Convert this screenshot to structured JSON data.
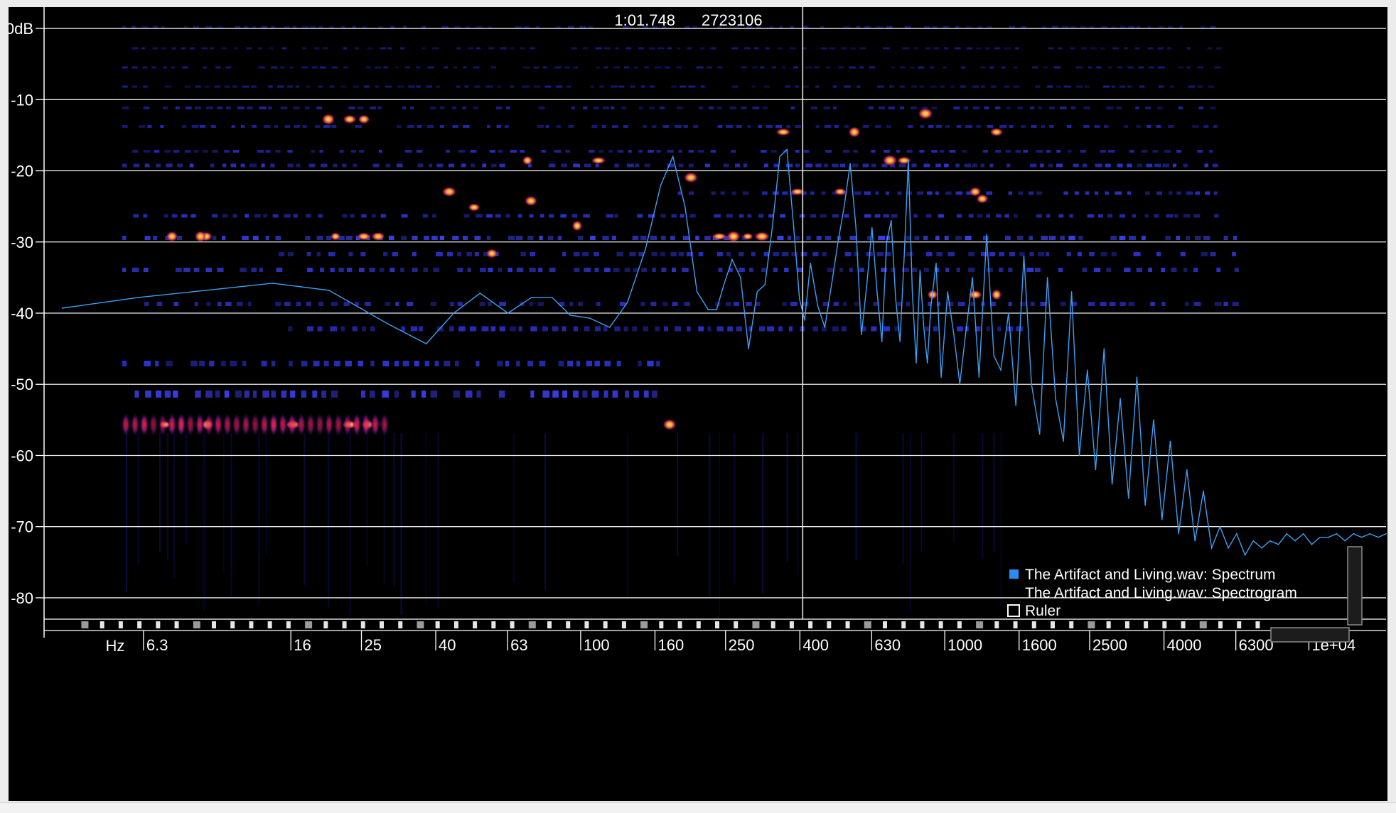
{
  "cursor": {
    "time": "1:01.748",
    "sample": "2723106"
  },
  "legend": {
    "spectrum": {
      "label": "The Artifact and Living.wav: Spectrum",
      "color": "#2b8cf0"
    },
    "spectrogram": {
      "label": "The Artifact and Living.wav: Spectrogram"
    },
    "ruler": {
      "label": "Ruler"
    }
  },
  "colors": {
    "spectrum_line": "#3aa0f5",
    "grid": "#e8e8e8",
    "background": "#000000"
  },
  "chart_data": {
    "type": "line",
    "xscale": "log",
    "x_unit_label": "Hz",
    "x_tick_labels": [
      "6.3",
      "16",
      "25",
      "40",
      "63",
      "100",
      "160",
      "250",
      "400",
      "630",
      "1000",
      "1600",
      "2500",
      "4000",
      "6300",
      "1e+04"
    ],
    "x_ticks": [
      6.3,
      16,
      25,
      40,
      63,
      100,
      160,
      250,
      400,
      630,
      1000,
      1600,
      2500,
      4000,
      6300,
      10000
    ],
    "xlim": [
      3.3,
      16000
    ],
    "y_tick_labels": [
      "0dB",
      "-10",
      "-20",
      "-30",
      "-40",
      "-50",
      "-60",
      "-70",
      "-80"
    ],
    "y_ticks": [
      0,
      -10,
      -20,
      -30,
      -40,
      -50,
      -60,
      -70,
      -80
    ],
    "ylim": [
      -83,
      3
    ],
    "grid": true,
    "cursor_x": 400,
    "legend_position": "bottom-right",
    "series": [
      {
        "name": "The Artifact and Living.wav: Spectrum",
        "x": [
          3.7,
          6,
          10,
          14,
          20,
          29,
          37,
          44,
          52,
          62,
          72,
          82,
          92,
          104,
          118,
          132,
          148,
          163,
          176,
          190,
          205,
          220,
          232,
          243,
          256,
          270,
          284,
          300,
          315,
          330,
          346,
          362,
          378,
          392,
          405,
          420,
          440,
          460,
          480,
          500,
          520,
          540,
          560,
          580,
          600,
          620,
          640,
          660,
          680,
          700,
          720,
          740,
          760,
          780,
          800,
          820,
          840,
          860,
          880,
          900,
          930,
          960,
          1000,
          1040,
          1080,
          1120,
          1170,
          1220,
          1280,
          1340,
          1400,
          1470,
          1540,
          1620,
          1700,
          1790,
          1880,
          1980,
          2080,
          2190,
          2300,
          2420,
          2550,
          2690,
          2830,
          2980,
          3140,
          3310,
          3490,
          3680,
          3880,
          4090,
          4310,
          4540,
          4780,
          5040,
          5310,
          5600,
          5900,
          6220,
          6560,
          6910,
          7290,
          7680,
          8100,
          8540,
          9000,
          9490,
          10000,
          10540,
          11110,
          11710,
          12340,
          13010,
          13710,
          14450,
          15230,
          16000
        ],
        "values": [
          -39.3,
          -37.8,
          -36.6,
          -35.8,
          -36.8,
          -41.5,
          -44.3,
          -40,
          -37.2,
          -40,
          -37.8,
          -37.8,
          -40.3,
          -40.7,
          -42,
          -38.5,
          -31,
          -22,
          -18,
          -25,
          -37,
          -39.5,
          -39.5,
          -36,
          -32.5,
          -35,
          -45,
          -37,
          -36,
          -28,
          -18,
          -17,
          -28,
          -38,
          -41,
          -33,
          -39,
          -42,
          -36,
          -30,
          -25,
          -19,
          -28,
          -43,
          -36,
          -28,
          -37,
          -44,
          -30,
          -27,
          -38,
          -44,
          -32,
          -18.5,
          -37,
          -47,
          -34,
          -42,
          -47,
          -39,
          -33,
          -49,
          -37,
          -43,
          -50,
          -43,
          -35,
          -49,
          -29,
          -46,
          -48,
          -40,
          -53,
          -32,
          -50,
          -57,
          -35,
          -52,
          -58,
          -37,
          -60,
          -48,
          -62,
          -45,
          -64,
          -52,
          -66,
          -49,
          -67,
          -55,
          -69,
          -58,
          -71,
          -62,
          -72,
          -65,
          -73,
          -70,
          -73,
          -71,
          -74,
          -72,
          -73,
          -72,
          -72.5,
          -71,
          -72,
          -71,
          -72.5,
          -71.5,
          -71.5,
          -71,
          -72,
          -71,
          -71.5,
          -71,
          -71.5,
          -71
        ]
      }
    ]
  }
}
